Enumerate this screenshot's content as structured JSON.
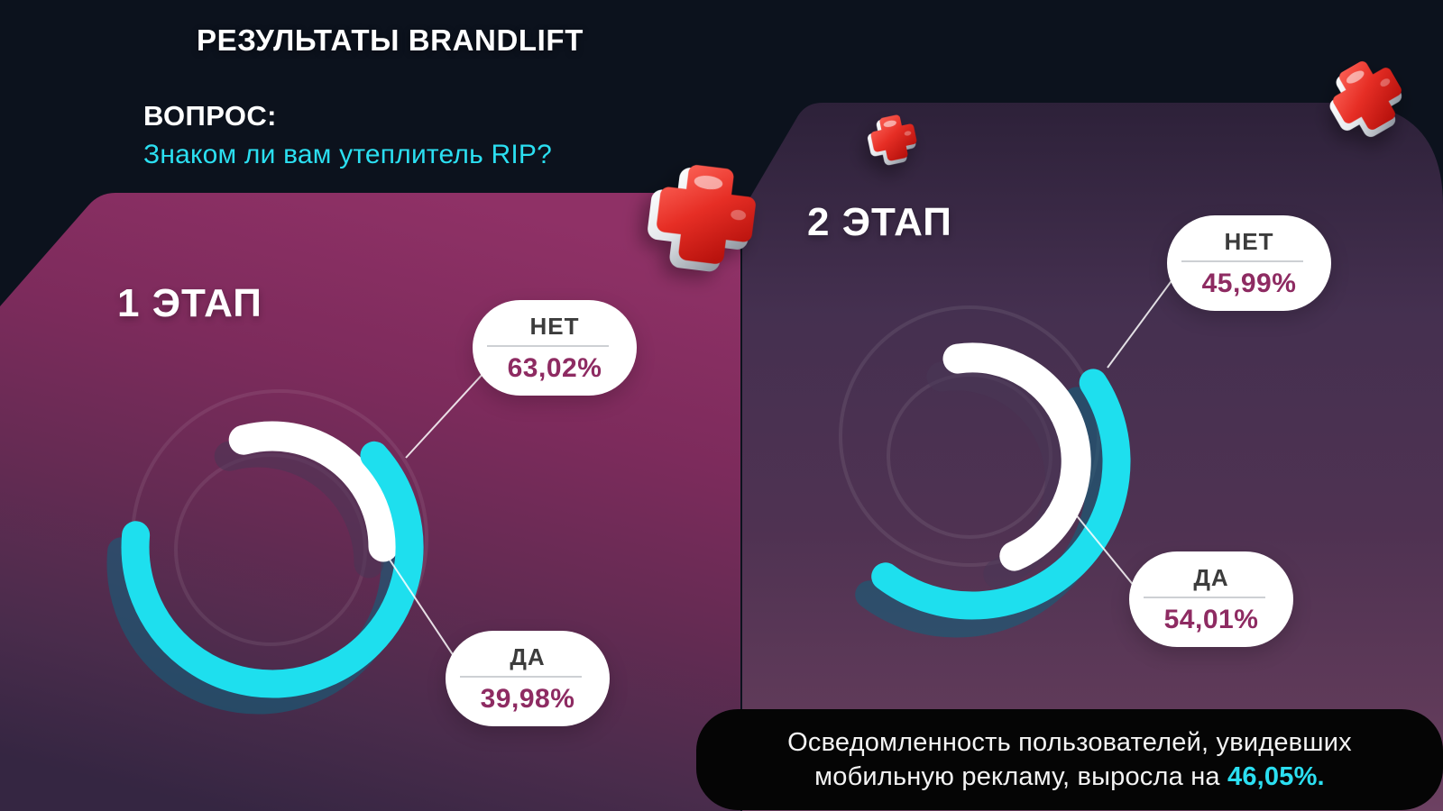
{
  "colors": {
    "accent_cyan": "#2bdff1",
    "value_magenta": "#8e2b62",
    "arc_cyan": "#1edfee",
    "arc_white": "#ffffff",
    "cross_red": "#e2261f"
  },
  "header": {
    "title": "РЕЗУЛЬТАТЫ BRANDLIFT",
    "question_label": "ВОПРОС:",
    "question_text": "Знаком ли вам утеплитель RIP?"
  },
  "panels": [
    {
      "stage_label": "1 ЭТАП"
    },
    {
      "stage_label": "2 ЭТАП"
    }
  ],
  "chart_data": [
    {
      "type": "donut",
      "stage": "1 ЭТАП",
      "unit": "%",
      "segments": [
        {
          "label": "НЕТ",
          "value": 63.02,
          "display": "63,02%",
          "color": "#1edfee",
          "arc_start_deg": 48,
          "arc_span_deg": 227
        },
        {
          "label": "ДА",
          "value": 39.98,
          "display": "39,98%",
          "color": "#ffffff",
          "arc_start_deg": 345,
          "arc_span_deg": 105
        }
      ]
    },
    {
      "type": "donut",
      "stage": "2 ЭТАП",
      "unit": "%",
      "segments": [
        {
          "label": "НЕТ",
          "value": 45.99,
          "display": "45,99%",
          "color": "#1edfee",
          "arc_start_deg": 57,
          "arc_span_deg": 160
        },
        {
          "label": "ДА",
          "value": 54.01,
          "display": "54,01%",
          "color": "#ffffff",
          "arc_start_deg": 352,
          "arc_span_deg": 164
        }
      ]
    }
  ],
  "footnote": {
    "line1": "Осведомленность пользователей, увидевших",
    "line2_prefix": "мобильную рекламу, выросла на ",
    "highlight": "46,05%."
  }
}
